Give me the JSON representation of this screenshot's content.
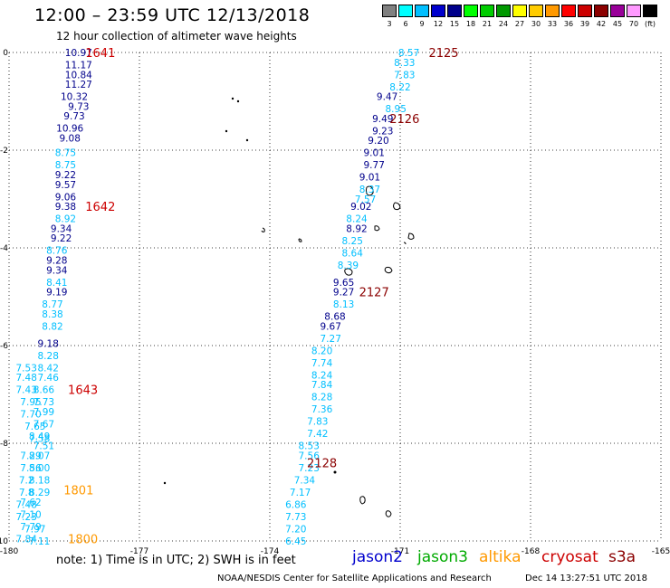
{
  "header": {
    "title": "12:00 – 23:59 UTC 12/13/2018",
    "subtitle": "12 hour collection of altimeter wave heights"
  },
  "color_scale": {
    "labels": [
      "3",
      "6",
      "9",
      "12",
      "15",
      "18",
      "21",
      "24",
      "27",
      "30",
      "33",
      "36",
      "39",
      "42",
      "45",
      "70",
      "(ft)"
    ],
    "colors": [
      "#808080",
      "#00ffff",
      "#00bfff",
      "#0000cd",
      "#00008b",
      "#00ff00",
      "#00cd00",
      "#009900",
      "#ffff00",
      "#ffcc00",
      "#ff9900",
      "#ff0000",
      "#cc0000",
      "#8b0000",
      "#990099",
      "#ff99ff",
      "#000000"
    ]
  },
  "map": {
    "lon_ticks": [
      "-180",
      "-177",
      "-174",
      "-171",
      "-168",
      "-165"
    ],
    "lat_ticks": [
      "0",
      "-2",
      "-4",
      "-6",
      "-8",
      "-10"
    ]
  },
  "chart_data": {
    "type": "scatter",
    "x_range": [
      -180,
      -165
    ],
    "y_range": [
      -10,
      0
    ],
    "series": [
      {
        "name": "jason2",
        "color": "#00008b",
        "points": [
          {
            "v": "10.97",
            "lon": -178.4,
            "lat": 0
          },
          {
            "v": "11.17",
            "lon": -178.4,
            "lat": -0.25
          },
          {
            "v": "10.84",
            "lon": -178.4,
            "lat": -0.45
          },
          {
            "v": "11.27",
            "lon": -178.4,
            "lat": -0.65
          },
          {
            "v": "10.32",
            "lon": -178.5,
            "lat": -0.9
          },
          {
            "v": "9.73",
            "lon": -178.4,
            "lat": -1.1
          },
          {
            "v": "9.73",
            "lon": -178.5,
            "lat": -1.3
          },
          {
            "v": "10.96",
            "lon": -178.6,
            "lat": -1.55
          },
          {
            "v": "9.08",
            "lon": -178.6,
            "lat": -1.75
          },
          {
            "v": "9.22",
            "lon": -178.7,
            "lat": -2.5
          },
          {
            "v": "9.57",
            "lon": -178.7,
            "lat": -2.7
          },
          {
            "v": "9.06",
            "lon": -178.7,
            "lat": -2.95
          },
          {
            "v": "9.38",
            "lon": -178.7,
            "lat": -3.15
          },
          {
            "v": "9.34",
            "lon": -178.8,
            "lat": -3.6
          },
          {
            "v": "9.22",
            "lon": -178.8,
            "lat": -3.8
          },
          {
            "v": "9.28",
            "lon": -178.9,
            "lat": -4.25
          },
          {
            "v": "9.34",
            "lon": -178.9,
            "lat": -4.45
          },
          {
            "v": "9.19",
            "lon": -178.9,
            "lat": -4.9
          },
          {
            "v": "9.18",
            "lon": -179.1,
            "lat": -5.95
          },
          {
            "v": "9.47",
            "lon": -171.3,
            "lat": -0.9
          },
          {
            "v": "9.49",
            "lon": -171.4,
            "lat": -1.35
          },
          {
            "v": "9.23",
            "lon": -171.4,
            "lat": -1.6
          },
          {
            "v": "9.20",
            "lon": -171.5,
            "lat": -1.8
          },
          {
            "v": "9.01",
            "lon": -171.6,
            "lat": -2.05
          },
          {
            "v": "9.77",
            "lon": -171.6,
            "lat": -2.3
          },
          {
            "v": "9.01",
            "lon": -171.7,
            "lat": -2.55
          },
          {
            "v": "9.02",
            "lon": -171.9,
            "lat": -3.15
          },
          {
            "v": "8.92",
            "lon": -172.0,
            "lat": -3.6
          },
          {
            "v": "9.65",
            "lon": -172.3,
            "lat": -4.7
          },
          {
            "v": "9.27",
            "lon": -172.3,
            "lat": -4.9
          },
          {
            "v": "8.68",
            "lon": -172.5,
            "lat": -5.4
          },
          {
            "v": "9.67",
            "lon": -172.6,
            "lat": -5.6
          }
        ]
      },
      {
        "name": "jason3",
        "color": "#00bfff",
        "points": [
          {
            "v": "8.75",
            "lon": -178.7,
            "lat": -2.05
          },
          {
            "v": "8.75",
            "lon": -178.7,
            "lat": -2.3
          },
          {
            "v": "8.92",
            "lon": -178.7,
            "lat": -3.4
          },
          {
            "v": "8.76",
            "lon": -178.9,
            "lat": -4.05
          },
          {
            "v": "8.41",
            "lon": -178.9,
            "lat": -4.7
          },
          {
            "v": "8.77",
            "lon": -179.0,
            "lat": -5.15
          },
          {
            "v": "8.38",
            "lon": -179.0,
            "lat": -5.35
          },
          {
            "v": "8.82",
            "lon": -179.0,
            "lat": -5.6
          },
          {
            "v": "8.28",
            "lon": -179.1,
            "lat": -6.2
          },
          {
            "v": "8.42",
            "lon": -179.1,
            "lat": -6.45
          },
          {
            "v": "7.46",
            "lon": -179.1,
            "lat": -6.65
          },
          {
            "v": "8.66",
            "lon": -179.2,
            "lat": -6.9
          },
          {
            "v": "7.73",
            "lon": -179.2,
            "lat": -7.15
          },
          {
            "v": "7.99",
            "lon": -179.2,
            "lat": -7.35
          },
          {
            "v": "7.67",
            "lon": -179.2,
            "lat": -7.6
          },
          {
            "v": "8.49",
            "lon": -179.3,
            "lat": -7.85
          },
          {
            "v": "7.53",
            "lon": -179.6,
            "lat": -6.45
          },
          {
            "v": "7.48",
            "lon": -179.6,
            "lat": -6.65
          },
          {
            "v": "7.43",
            "lon": -179.6,
            "lat": -6.9
          },
          {
            "v": "7.95",
            "lon": -179.5,
            "lat": -7.15
          },
          {
            "v": "7.70",
            "lon": -179.5,
            "lat": -7.4
          },
          {
            "v": "7.65",
            "lon": -179.4,
            "lat": -7.65
          },
          {
            "v": "7.58",
            "lon": -179.3,
            "lat": -7.9
          },
          {
            "v": "7.51",
            "lon": -179.2,
            "lat": -8.05
          },
          {
            "v": "8.07",
            "lon": -179.3,
            "lat": -8.25
          },
          {
            "v": "7.29",
            "lon": -179.5,
            "lat": -8.25
          },
          {
            "v": "8.00",
            "lon": -179.3,
            "lat": -8.5
          },
          {
            "v": "7.56",
            "lon": -179.5,
            "lat": -8.5
          },
          {
            "v": "8.18",
            "lon": -179.3,
            "lat": -8.75
          },
          {
            "v": "7.2",
            "lon": -179.6,
            "lat": -8.75
          },
          {
            "v": "8.29",
            "lon": -179.3,
            "lat": -9.0
          },
          {
            "v": "7.8",
            "lon": -179.6,
            "lat": -9.0
          },
          {
            "v": "7.62",
            "lon": -179.5,
            "lat": -9.2
          },
          {
            "v": "7.48",
            "lon": -179.6,
            "lat": -9.25
          },
          {
            "v": "7.10",
            "lon": -179.5,
            "lat": -9.45
          },
          {
            "v": "7.23",
            "lon": -179.6,
            "lat": -9.5
          },
          {
            "v": "7.79",
            "lon": -179.5,
            "lat": -9.7
          },
          {
            "v": "7.97",
            "lon": -179.4,
            "lat": -9.75
          },
          {
            "v": "7.84",
            "lon": -179.6,
            "lat": -9.95
          },
          {
            "v": "7.11",
            "lon": -179.3,
            "lat": -10.0
          },
          {
            "v": "8.57",
            "lon": -170.8,
            "lat": 0
          },
          {
            "v": "8.33",
            "lon": -170.9,
            "lat": -0.2
          },
          {
            "v": "7.83",
            "lon": -170.9,
            "lat": -0.45
          },
          {
            "v": "8.22",
            "lon": -171.0,
            "lat": -0.7
          },
          {
            "v": "8.95",
            "lon": -171.1,
            "lat": -1.15
          },
          {
            "v": "8.37",
            "lon": -171.7,
            "lat": -2.8
          },
          {
            "v": "7.57",
            "lon": -171.8,
            "lat": -3.0
          },
          {
            "v": "8.24",
            "lon": -172.0,
            "lat": -3.4
          },
          {
            "v": "8.25",
            "lon": -172.1,
            "lat": -3.85
          },
          {
            "v": "8.64",
            "lon": -172.1,
            "lat": -4.1
          },
          {
            "v": "8.39",
            "lon": -172.2,
            "lat": -4.35
          },
          {
            "v": "8.13",
            "lon": -172.3,
            "lat": -5.15
          },
          {
            "v": "7.27",
            "lon": -172.6,
            "lat": -5.85
          },
          {
            "v": "8.20",
            "lon": -172.8,
            "lat": -6.1
          },
          {
            "v": "7.74",
            "lon": -172.8,
            "lat": -6.35
          },
          {
            "v": "8.24",
            "lon": -172.8,
            "lat": -6.6
          },
          {
            "v": "7.84",
            "lon": -172.8,
            "lat": -6.8
          },
          {
            "v": "8.28",
            "lon": -172.8,
            "lat": -7.05
          },
          {
            "v": "7.36",
            "lon": -172.8,
            "lat": -7.3
          },
          {
            "v": "7.83",
            "lon": -172.9,
            "lat": -7.55
          },
          {
            "v": "7.42",
            "lon": -172.9,
            "lat": -7.8
          },
          {
            "v": "8.53",
            "lon": -173.1,
            "lat": -8.05
          },
          {
            "v": "7.56",
            "lon": -173.1,
            "lat": -8.25
          },
          {
            "v": "7.23",
            "lon": -173.1,
            "lat": -8.5
          },
          {
            "v": "7.34",
            "lon": -173.2,
            "lat": -8.75
          },
          {
            "v": "7.17",
            "lon": -173.3,
            "lat": -9.0
          },
          {
            "v": "6.86",
            "lon": -173.4,
            "lat": -9.25
          },
          {
            "v": "7.73",
            "lon": -173.4,
            "lat": -9.5
          },
          {
            "v": "7.20",
            "lon": -173.4,
            "lat": -9.75
          },
          {
            "v": "6.45",
            "lon": -173.4,
            "lat": -10.0
          }
        ]
      }
    ],
    "pass_labels": [
      {
        "text": "1641",
        "lon": -177.9,
        "lat": 0,
        "color": "#cc0000"
      },
      {
        "text": "1642",
        "lon": -177.9,
        "lat": -3.15,
        "color": "#cc0000"
      },
      {
        "text": "1643",
        "lon": -178.3,
        "lat": -6.9,
        "color": "#cc0000"
      },
      {
        "text": "1801",
        "lon": -178.4,
        "lat": -8.95,
        "color": "#ff9900"
      },
      {
        "text": "1800",
        "lon": -178.3,
        "lat": -9.95,
        "color": "#ff9900"
      },
      {
        "text": "2125",
        "lon": -170.0,
        "lat": 0,
        "color": "#8b0000"
      },
      {
        "text": "2126",
        "lon": -170.9,
        "lat": -1.35,
        "color": "#8b0000"
      },
      {
        "text": "2127",
        "lon": -171.6,
        "lat": -4.9,
        "color": "#8b0000"
      },
      {
        "text": "2128",
        "lon": -172.8,
        "lat": -8.4,
        "color": "#8b0000"
      }
    ]
  },
  "legend_note": "note: 1) Time is in UTC; 2) SWH is in feet",
  "sources": [
    {
      "label": "jason2",
      "color": "#0000cd"
    },
    {
      "label": "jason3",
      "color": "#00aa00"
    },
    {
      "label": "altika",
      "color": "#ff9900"
    },
    {
      "label": "cryosat",
      "color": "#cc0000"
    },
    {
      "label": "s3a",
      "color": "#8b0000"
    }
  ],
  "footer": {
    "credit": "NOAA/NESDIS Center for Satellite Applications and Research",
    "timestamp": "Dec 14 13:27:51 UTC 2018"
  }
}
